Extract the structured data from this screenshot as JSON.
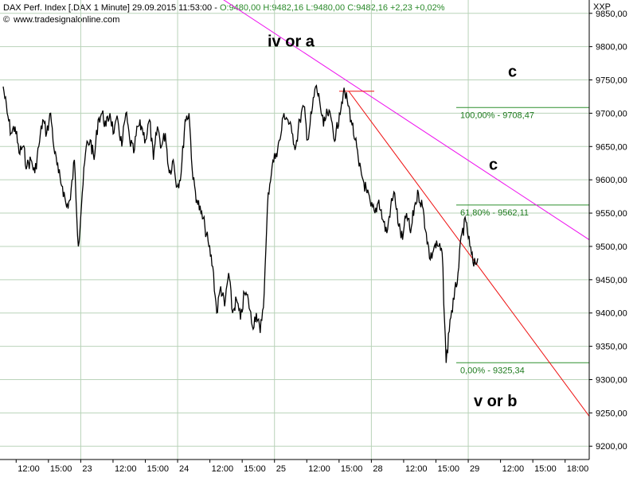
{
  "header": {
    "instrument": "DAX Perf. Index [.DAX",
    "interval": "1 Minute]",
    "datetime": "29.09.2015 11:53:00",
    "ohlc": "O:9480,00 H:9482,16 L:9480,00 C:9482,16 +2,23 +0,02%"
  },
  "source": {
    "copyright": "©",
    "url": "www.tradesignalonline.com"
  },
  "symbol": "XXP",
  "colors": {
    "price": "#000000",
    "grid": "#b9d3b9",
    "fib": "#2f8f2f",
    "fib_text": "#1d7a1d",
    "trend_red": "#ee1111",
    "trend_magenta": "#ee11ee",
    "axis": "#000000"
  },
  "chart_data": {
    "type": "line",
    "ylim": [
      9180,
      9870
    ],
    "y_ticks": [
      "9200,00",
      "9250,00",
      "9300,00",
      "9350,00",
      "9400,00",
      "9450,00",
      "9500,00",
      "9550,00",
      "9600,00",
      "9650,00",
      "9700,00",
      "9750,00",
      "9800,00",
      "9850,00"
    ],
    "x_ticks": [
      "12:00",
      "15:00",
      "23",
      "12:00",
      "15:00",
      "24",
      "12:00",
      "15:00",
      "25",
      "12:00",
      "15:00",
      "28",
      "12:00",
      "15:00",
      "29",
      "12:00",
      "15:00",
      "18:00"
    ],
    "day_separators": [
      "23",
      "24",
      "25",
      "28",
      "29"
    ],
    "series": [
      {
        "values": [
          9740,
          9700,
          9670,
          9680,
          9640,
          9650,
          9620,
          9630,
          9610,
          9650,
          9690,
          9670,
          9700,
          9640,
          9610,
          9590,
          9560,
          9570,
          9630,
          9500,
          9580,
          9650,
          9660,
          9630,
          9690,
          9700,
          9680,
          9700,
          9670,
          9690,
          9650,
          9700,
          9660,
          9640,
          9680,
          9680,
          9660,
          9690,
          9630,
          9680,
          9650,
          9670,
          9610,
          9630,
          9590,
          9610,
          9690,
          9700,
          9600,
          9570,
          9550,
          9530,
          9500,
          9470,
          9400,
          9440,
          9410,
          9460,
          9400,
          9420,
          9390,
          9430,
          9420,
          9380,
          9400,
          9370,
          9430,
          9580,
          9620,
          9640,
          9660,
          9700,
          9690,
          9670,
          9650,
          9690,
          9710,
          9660,
          9700,
          9740,
          9720,
          9680,
          9700,
          9690,
          9660,
          9700,
          9730,
          9720,
          9690,
          9660,
          9620,
          9600,
          9580,
          9560,
          9550,
          9570,
          9540,
          9520,
          9560,
          9580,
          9530,
          9510,
          9550,
          9520,
          9560,
          9580,
          9560,
          9520,
          9480,
          9500,
          9500,
          9490,
          9325,
          9390,
          9420,
          9460,
          9520,
          9537,
          9500,
          9470,
          9482
        ]
      }
    ],
    "fibonacci": [
      {
        "label": "100,00% - 9708,47",
        "value": 9708.47
      },
      {
        "label": "61,80% - 9562,11",
        "value": 9562.11
      },
      {
        "label": "0,00% - 9325,34",
        "value": 9325.34
      }
    ],
    "annotations": [
      {
        "text": "iv or a",
        "y": 9800
      },
      {
        "text": "c",
        "y": 9755
      },
      {
        "text": "c",
        "y": 9615
      },
      {
        "text": "v or b",
        "y": 9260
      }
    ],
    "trendlines": [
      {
        "name": "magenta-resistance",
        "from_y": 9885,
        "to_y": 9510
      },
      {
        "name": "red-decline",
        "from_y": 9733,
        "to_y": 9245
      }
    ],
    "marker_level": 9733
  }
}
